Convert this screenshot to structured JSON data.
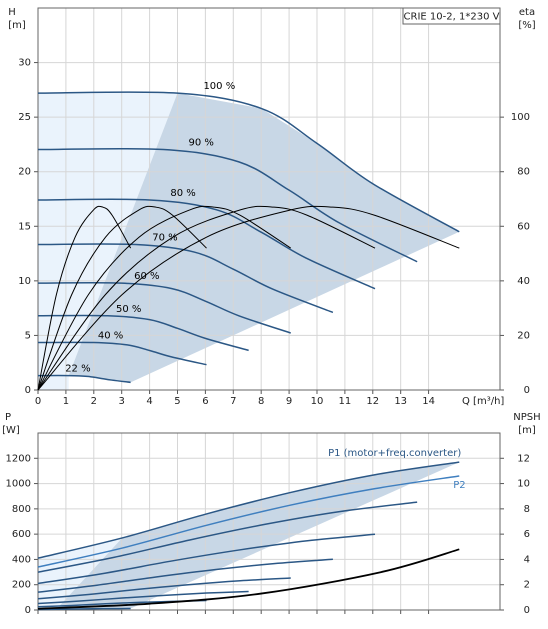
{
  "chart_data": [
    {
      "type": "line",
      "title": "CRIE 10-2, 1*230 V",
      "xlabel": "Q [m³/h]",
      "ylabel": "H",
      "yunit": "[m]",
      "y2label": "eta",
      "y2unit": "[%]",
      "xlim": [
        0,
        16.56
      ],
      "xticks": [
        0,
        1,
        2,
        3,
        4,
        5,
        6,
        7,
        8,
        9,
        10,
        11,
        12,
        13,
        14
      ],
      "ylim": [
        0,
        35
      ],
      "yticks": [
        0,
        5,
        10,
        15,
        20,
        25,
        30
      ],
      "y2lim": [
        0,
        140
      ],
      "y2ticks": [
        0,
        20,
        40,
        60,
        80,
        100
      ],
      "grid": true,
      "xtick_labels": true,
      "series": [
        {
          "name": "100 %",
          "color": "#2b5785",
          "x": [
            0,
            5,
            8,
            10,
            12,
            15.1
          ],
          "values": [
            27.2,
            27.2,
            25.8,
            22.6,
            18.9,
            14.5
          ]
        },
        {
          "name": "90 %",
          "color": "#2b5785",
          "x": [
            0,
            4.5,
            7.2,
            9,
            10.8,
            13.59
          ],
          "values": [
            22.03,
            22.03,
            20.9,
            18.31,
            15.31,
            11.75
          ]
        },
        {
          "name": "80 %",
          "color": "#2b5785",
          "x": [
            0,
            4,
            6.4,
            8,
            9.6,
            12.08
          ],
          "values": [
            17.41,
            17.41,
            16.51,
            14.46,
            12.1,
            9.28
          ]
        },
        {
          "name": "70 %",
          "color": "#2b5785",
          "x": [
            0,
            3.5,
            5.6,
            7,
            8.4,
            10.57
          ],
          "values": [
            13.33,
            13.33,
            12.64,
            11.07,
            9.26,
            7.11
          ]
        },
        {
          "name": "60 %",
          "color": "#2b5785",
          "x": [
            0,
            3,
            4.8,
            6,
            7.2,
            9.06
          ],
          "values": [
            9.79,
            9.79,
            9.29,
            8.14,
            6.8,
            5.22
          ]
        },
        {
          "name": "50 %",
          "color": "#2b5785",
          "x": [
            0,
            2.5,
            4,
            5,
            6,
            7.55
          ],
          "values": [
            6.8,
            6.8,
            6.45,
            5.65,
            4.73,
            3.63
          ]
        },
        {
          "name": "40 %",
          "color": "#2b5785",
          "x": [
            0,
            2,
            3.2,
            4,
            4.8,
            6.04
          ],
          "values": [
            4.35,
            4.35,
            4.13,
            3.62,
            3.02,
            2.32
          ]
        },
        {
          "name": "22 %",
          "color": "#2b5785",
          "x": [
            0,
            1.1,
            1.76,
            2.2,
            2.64,
            3.32
          ],
          "values": [
            1.32,
            1.32,
            1.25,
            1.09,
            0.91,
            0.7
          ]
        },
        {
          "axis": "y2",
          "color": "#000000",
          "x": [
            0,
            3.02,
            6.04,
            9.06,
            10.57,
            12.08,
            15.1
          ],
          "values": [
            0,
            35,
            56,
            66,
            67,
            64,
            52
          ]
        },
        {
          "axis": "y2",
          "color": "#000000",
          "x": [
            0,
            2.42,
            4.83,
            7.25,
            8.46,
            9.66,
            12.08
          ],
          "values": [
            0,
            35,
            56,
            66,
            67,
            64,
            52
          ]
        },
        {
          "axis": "y2",
          "color": "#000000",
          "x": [
            0,
            1.81,
            3.62,
            5.44,
            6.34,
            7.25,
            9.06
          ],
          "values": [
            0,
            35,
            56,
            66,
            67,
            64,
            52
          ]
        },
        {
          "axis": "y2",
          "color": "#000000",
          "x": [
            0,
            1.21,
            2.42,
            3.62,
            4.23,
            4.83,
            6.04
          ],
          "values": [
            0,
            35,
            56,
            66,
            67,
            64,
            52
          ]
        },
        {
          "axis": "y2",
          "color": "#000000",
          "x": [
            0,
            0.66,
            1.33,
            1.99,
            2.33,
            2.66,
            3.32
          ],
          "values": [
            0,
            35,
            56,
            66,
            67,
            64,
            52
          ]
        }
      ]
    },
    {
      "type": "line",
      "ylabel": "P",
      "yunit": "[W]",
      "y2label": "NPSH",
      "y2unit": "[m]",
      "xlim": [
        0,
        16.56
      ],
      "xticks": [
        0,
        1,
        2,
        3,
        4,
        5,
        6,
        7,
        8,
        9,
        10,
        11,
        12,
        13,
        14
      ],
      "ylim": [
        0,
        1400
      ],
      "yticks": [
        0,
        200,
        400,
        600,
        800,
        1000,
        1200
      ],
      "y2lim": [
        0,
        14
      ],
      "y2ticks": [
        0,
        2,
        4,
        6,
        8,
        10,
        12
      ],
      "grid": true,
      "xtick_labels": false,
      "series": [
        {
          "name": "P1 (motor+freq.converter)",
          "color": "#2b5785",
          "x": [
            0,
            3.02,
            6.04,
            9.06,
            12.08,
            15.1
          ],
          "values": [
            410,
            570,
            760,
            930,
            1070,
            1170
          ]
        },
        {
          "name": "P2",
          "color": "#3f7fbf",
          "x": [
            0,
            3.02,
            6.04,
            9.06,
            12.08,
            15.1
          ],
          "values": [
            340,
            490,
            670,
            830,
            960,
            1060
          ]
        },
        {
          "color": "#2b5785",
          "x": [
            0,
            2.72,
            5.44,
            8.15,
            10.87,
            13.59
          ],
          "values": [
            299,
            416,
            554,
            678,
            780,
            853
          ]
        },
        {
          "color": "#2b5785",
          "x": [
            0,
            2.42,
            4.83,
            7.25,
            9.66,
            12.08
          ],
          "values": [
            210,
            292,
            389,
            476,
            548,
            599
          ]
        },
        {
          "color": "#2b5785",
          "x": [
            0,
            2.11,
            4.23,
            6.34,
            8.46,
            10.57
          ],
          "values": [
            141,
            196,
            261,
            319,
            367,
            401
          ]
        },
        {
          "color": "#2b5785",
          "x": [
            0,
            1.81,
            3.62,
            5.44,
            7.25,
            9.06
          ],
          "values": [
            89,
            123,
            164,
            201,
            231,
            253
          ]
        },
        {
          "color": "#2b5785",
          "x": [
            0,
            1.51,
            3.02,
            4.53,
            6.04,
            7.55
          ],
          "values": [
            51,
            71,
            95,
            116,
            134,
            146
          ]
        },
        {
          "color": "#2b5785",
          "x": [
            0,
            1.21,
            2.42,
            3.62,
            4.83,
            6.04
          ],
          "values": [
            26,
            36,
            49,
            60,
            68,
            75
          ]
        },
        {
          "color": "#2b5785",
          "x": [
            0,
            0.66,
            1.33,
            1.99,
            2.66,
            3.32
          ],
          "values": [
            4,
            6,
            8,
            10,
            11,
            12
          ]
        },
        {
          "axis": "y2",
          "color": "#000000",
          "x": [
            0,
            4,
            8,
            12.3,
            15.1
          ],
          "values": [
            0.1,
            0.5,
            1.3,
            3,
            4.8
          ]
        }
      ]
    }
  ]
}
